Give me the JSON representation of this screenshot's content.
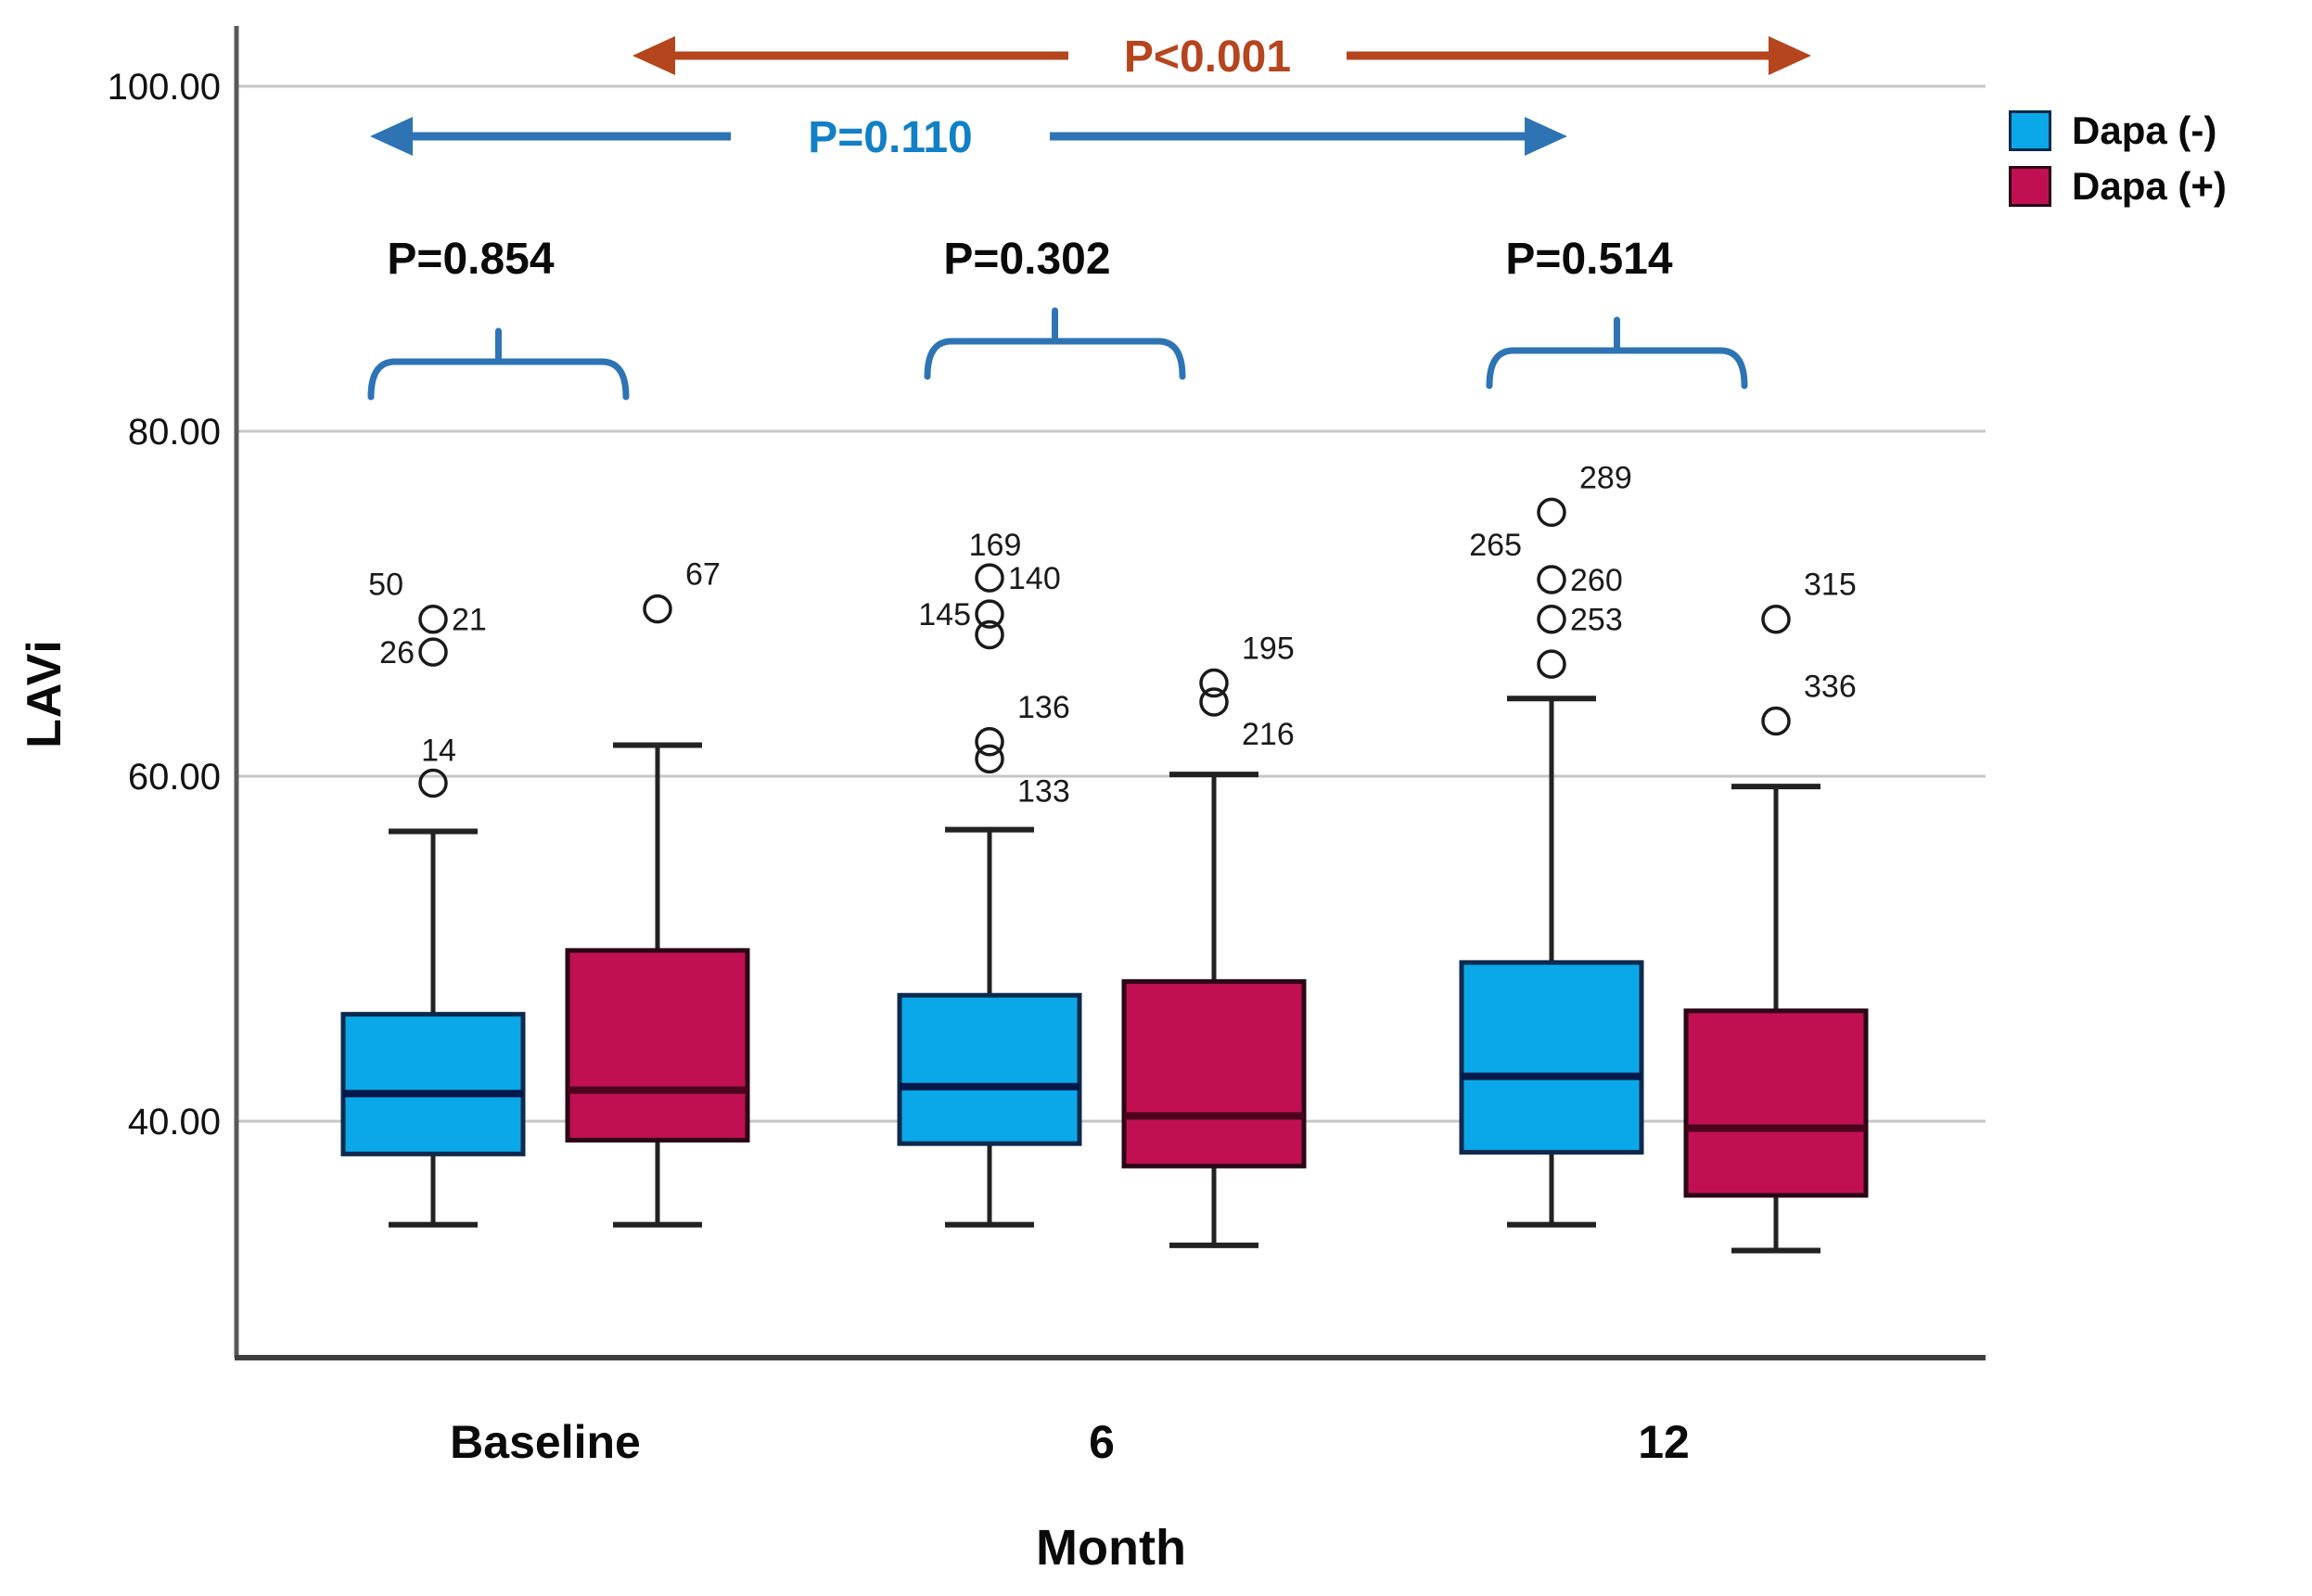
{
  "legend": {
    "items": [
      {
        "label": "Dapa (-)"
      },
      {
        "label": "Dapa (+)"
      }
    ]
  },
  "chart_data": {
    "type": "box",
    "title": "",
    "xlabel": "Month",
    "ylabel": "LAVi",
    "categories": [
      "Baseline",
      "6",
      "12"
    ],
    "y_ticks": [
      {
        "value": 100,
        "label": "100.00"
      },
      {
        "value": 80,
        "label": "80.00"
      },
      {
        "value": 60,
        "label": "60.00"
      },
      {
        "value": 40,
        "label": "40.00"
      }
    ],
    "ylim": [
      27,
      104
    ],
    "grid": "horizontal",
    "legend_position": "top-right",
    "colors": {
      "dapa_minus_fill": "#0aa8e8",
      "dapa_minus_border": "#0d2a4d",
      "dapa_minus_median": "#02194a",
      "dapa_plus_fill": "#c01052",
      "dapa_plus_border": "#2a0616",
      "dapa_plus_median": "#4a041c",
      "whisker": "#222222",
      "outlier_stroke": "#1a1a1a",
      "gridline": "#c6c6c6",
      "axis_line": "#595959",
      "bracket_blue": "#2e74b5",
      "arrow_red": "#b5451d",
      "arrow_blue": "#2e74b5",
      "arrow_blue_text": "#1180c6"
    },
    "series": [
      {
        "name": "Dapa (-)",
        "boxes": [
          {
            "category": "Baseline",
            "whisker_low": 34.0,
            "q1": 38.1,
            "median": 41.6,
            "q3": 46.2,
            "whisker_high": 56.8,
            "outliers": [
              {
                "value": 69.1,
                "labels": [
                  {
                    "text": "50",
                    "side": "above-left"
                  },
                  {
                    "text": "21",
                    "side": "right"
                  }
                ]
              },
              {
                "value": 67.2,
                "labels": [
                  {
                    "text": "26",
                    "side": "left"
                  }
                ]
              },
              {
                "value": 59.6,
                "labels": [
                  {
                    "text": "14",
                    "side": "above"
                  }
                ]
              }
            ]
          },
          {
            "category": "6",
            "whisker_low": 34.0,
            "q1": 38.7,
            "median": 42.0,
            "q3": 47.3,
            "whisker_high": 56.9,
            "outliers": [
              {
                "value": 71.5,
                "labels": [
                  {
                    "text": "169",
                    "side": "above"
                  },
                  {
                    "text": "140",
                    "side": "right"
                  }
                ]
              },
              {
                "value": 69.4,
                "labels": [
                  {
                    "text": "145",
                    "side": "left"
                  }
                ]
              },
              {
                "value": 68.2,
                "labels": []
              },
              {
                "value": 62.0,
                "labels": [
                  {
                    "text": "136",
                    "side": "above-right"
                  }
                ]
              },
              {
                "value": 61.0,
                "labels": [
                  {
                    "text": "133",
                    "side": "below-right"
                  }
                ]
              }
            ]
          },
          {
            "category": "12",
            "whisker_low": 34.0,
            "q1": 38.2,
            "median": 42.6,
            "q3": 49.2,
            "whisker_high": 64.5,
            "outliers": [
              {
                "value": 75.3,
                "labels": [
                  {
                    "text": "289",
                    "side": "above-right"
                  }
                ]
              },
              {
                "value": 71.4,
                "labels": [
                  {
                    "text": "265",
                    "side": "above-left"
                  },
                  {
                    "text": "260",
                    "side": "right"
                  }
                ]
              },
              {
                "value": 69.1,
                "labels": [
                  {
                    "text": "253",
                    "side": "right"
                  }
                ]
              },
              {
                "value": 66.5,
                "labels": []
              }
            ]
          }
        ]
      },
      {
        "name": "Dapa (+)",
        "boxes": [
          {
            "category": "Baseline",
            "whisker_low": 34.0,
            "q1": 38.9,
            "median": 41.8,
            "q3": 49.9,
            "whisker_high": 61.8,
            "outliers": [
              {
                "value": 69.7,
                "labels": [
                  {
                    "text": "67",
                    "side": "above-right"
                  }
                ]
              }
            ]
          },
          {
            "category": "6",
            "whisker_low": 32.8,
            "q1": 37.4,
            "median": 40.3,
            "q3": 48.1,
            "whisker_high": 60.1,
            "outliers": [
              {
                "value": 65.4,
                "labels": [
                  {
                    "text": "195",
                    "side": "above-right"
                  }
                ]
              },
              {
                "value": 64.3,
                "labels": [
                  {
                    "text": "216",
                    "side": "below-right"
                  }
                ]
              }
            ]
          },
          {
            "category": "12",
            "whisker_low": 32.5,
            "q1": 35.7,
            "median": 39.6,
            "q3": 46.4,
            "whisker_high": 59.4,
            "outliers": [
              {
                "value": 69.1,
                "labels": [
                  {
                    "text": "315",
                    "side": "above-right"
                  }
                ]
              },
              {
                "value": 63.2,
                "labels": [
                  {
                    "text": "336",
                    "side": "above-right"
                  }
                ]
              }
            ]
          }
        ]
      }
    ],
    "pairwise_comparisons": [
      {
        "category": "Baseline",
        "label": "P=0.854"
      },
      {
        "category": "6",
        "label": "P=0.302"
      },
      {
        "category": "12",
        "label": "P=0.514"
      }
    ],
    "longitudinal_comparisons": [
      {
        "group": "Dapa (+)",
        "label": "P<0.001",
        "color_key": "red"
      },
      {
        "group": "Dapa (-)",
        "label": "P=0.110",
        "color_key": "blue"
      }
    ]
  }
}
